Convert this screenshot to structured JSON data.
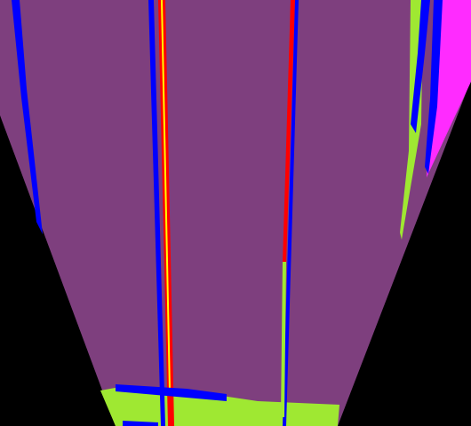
{
  "colors": {
    "background": "#000000",
    "road": "#7e3f7e",
    "vegetation": "#9fe832",
    "lane_marking": "#0000ff",
    "lane_center_line": "#ff0000",
    "lane_highlight": "#ffff00",
    "sidewalk": "#ff2bff"
  }
}
